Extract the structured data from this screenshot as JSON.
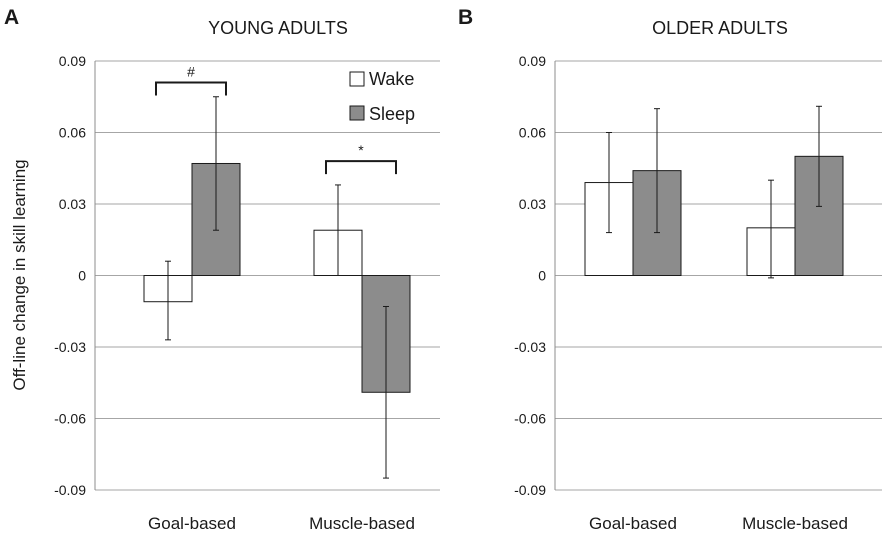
{
  "colors": {
    "wake": "#ffffff",
    "sleep": "#8c8c8c"
  },
  "y_axis_label": "Off-line change in skill learning",
  "chart_data": [
    {
      "panel_letter": "A",
      "title": "YOUNG ADULTS",
      "type": "bar",
      "categories": [
        "Goal-based",
        "Muscle-based"
      ],
      "ylim": [
        -0.09,
        0.09
      ],
      "yticks": [
        "0.09",
        "0.06",
        "0.03",
        "0",
        "-0.03",
        "-0.06",
        "-0.09"
      ],
      "ytick_values": [
        0.09,
        0.06,
        0.03,
        0,
        -0.03,
        -0.06,
        -0.09
      ],
      "series": [
        {
          "name": "Wake",
          "values": [
            -0.011,
            0.019
          ],
          "err_low": [
            -0.027,
            0.0
          ],
          "err_high": [
            0.006,
            0.038
          ]
        },
        {
          "name": "Sleep",
          "values": [
            0.047,
            -0.049
          ],
          "err_low": [
            0.019,
            -0.085
          ],
          "err_high": [
            0.075,
            -0.013
          ]
        }
      ],
      "legend": [
        "Wake",
        "Sleep"
      ],
      "significance": [
        {
          "category_index": 0,
          "label": "#",
          "y": 0.081
        },
        {
          "category_index": 1,
          "label": "*",
          "y": 0.048
        }
      ]
    },
    {
      "panel_letter": "B",
      "title": "OLDER ADULTS",
      "type": "bar",
      "categories": [
        "Goal-based",
        "Muscle-based"
      ],
      "ylim": [
        -0.09,
        0.09
      ],
      "yticks": [
        "0.09",
        "0.06",
        "0.03",
        "0",
        "-0.03",
        "-0.06",
        "-0.09"
      ],
      "ytick_values": [
        0.09,
        0.06,
        0.03,
        0,
        -0.03,
        -0.06,
        -0.09
      ],
      "series": [
        {
          "name": "Wake",
          "values": [
            0.039,
            0.02
          ],
          "err_low": [
            0.018,
            -0.001
          ],
          "err_high": [
            0.06,
            0.04
          ]
        },
        {
          "name": "Sleep",
          "values": [
            0.044,
            0.05
          ],
          "err_low": [
            0.018,
            0.029
          ],
          "err_high": [
            0.07,
            0.071
          ]
        }
      ]
    }
  ]
}
